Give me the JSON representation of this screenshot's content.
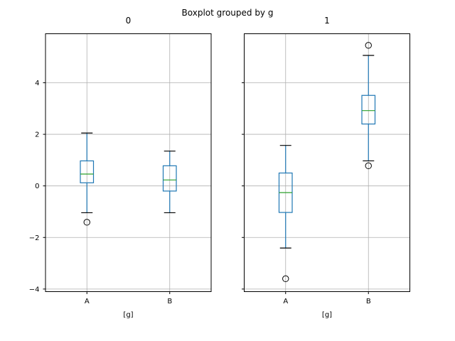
{
  "figure": {
    "title": "Boxplot grouped by g",
    "background_color": "#ffffff"
  },
  "chart_data": {
    "type": "boxplot",
    "title": "Boxplot grouped by g",
    "grid": true,
    "legend": "none",
    "ylim": [
      -4.1,
      5.9
    ],
    "yticks": [
      {
        "value": -4,
        "label": "−4"
      },
      {
        "value": -2,
        "label": "−2"
      },
      {
        "value": 0,
        "label": "0"
      },
      {
        "value": 2,
        "label": "2"
      },
      {
        "value": 4,
        "label": "4"
      }
    ],
    "colors": {
      "box": "#1f77b4",
      "whisker": "#1f77b4",
      "median": "#2ca02c",
      "cap": "#000000",
      "outlier_edge": "#000000",
      "grid": "#b0b0b0",
      "spine": "#000000",
      "text": "#000000"
    },
    "subplots": [
      {
        "title": "0",
        "xlabel": "[g]",
        "categories": [
          "A",
          "B"
        ],
        "boxes": [
          {
            "category": "A",
            "whisker_low": -1.04,
            "q1": 0.12,
            "median": 0.46,
            "q3": 0.97,
            "whisker_high": 2.05,
            "outliers": [
              -1.41
            ]
          },
          {
            "category": "B",
            "whisker_low": -1.04,
            "q1": -0.2,
            "median": 0.23,
            "q3": 0.78,
            "whisker_high": 1.35,
            "outliers": []
          }
        ]
      },
      {
        "title": "1",
        "xlabel": "[g]",
        "categories": [
          "A",
          "B"
        ],
        "boxes": [
          {
            "category": "A",
            "whisker_low": -2.41,
            "q1": -1.03,
            "median": -0.26,
            "q3": 0.5,
            "whisker_high": 1.57,
            "outliers": [
              -3.6
            ]
          },
          {
            "category": "B",
            "whisker_low": 0.97,
            "q1": 2.4,
            "median": 2.92,
            "q3": 3.51,
            "whisker_high": 5.06,
            "outliers": [
              5.45,
              0.78
            ]
          }
        ]
      }
    ]
  }
}
